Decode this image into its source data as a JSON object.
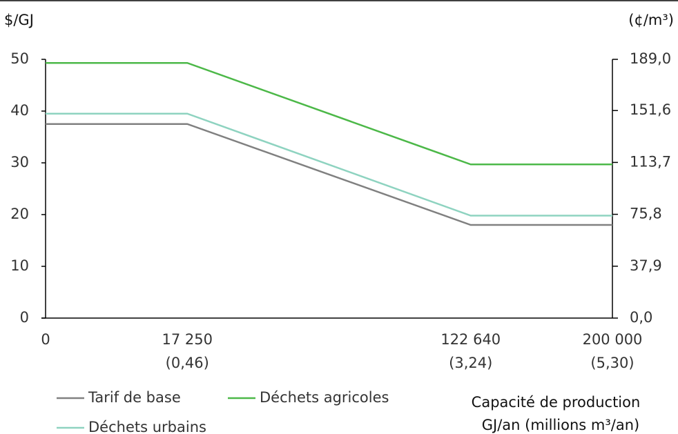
{
  "chart_data": {
    "type": "line",
    "y_label": "$/GJ",
    "y2_label": "(¢/m³)",
    "xlabel": [
      "Capacité de production",
      "GJ/an (millions m³/an)"
    ],
    "categories": [
      "0",
      "17 250",
      "122 640",
      "200 000"
    ],
    "categories_sub": [
      null,
      "(0,46)",
      "(3,24)",
      "(5,30)"
    ],
    "series": [
      {
        "name": "Tarif de base",
        "color": "#808080",
        "values": [
          37.5,
          37.5,
          18,
          18
        ]
      },
      {
        "name": "Déchets agricoles",
        "color": "#4cb848",
        "values": [
          49.3,
          49.3,
          29.7,
          29.7
        ]
      },
      {
        "name": "Déchets urbains",
        "color": "#8ed3c0",
        "values": [
          39.5,
          39.5,
          19.8,
          19.8
        ]
      }
    ],
    "ylim": [
      0,
      50
    ],
    "yticks": [
      0,
      10,
      20,
      30,
      40,
      50
    ],
    "y2lim": [
      0,
      189
    ],
    "y2ticks": [
      {
        "value": 0,
        "label": "0,0"
      },
      {
        "value": 37.9,
        "label": "37,9"
      },
      {
        "value": 75.8,
        "label": "75,8"
      },
      {
        "value": 113.7,
        "label": "113,7"
      },
      {
        "value": 151.6,
        "label": "151,6"
      },
      {
        "value": 189,
        "label": "189,0"
      }
    ],
    "grid": false,
    "legend": "bottom"
  }
}
